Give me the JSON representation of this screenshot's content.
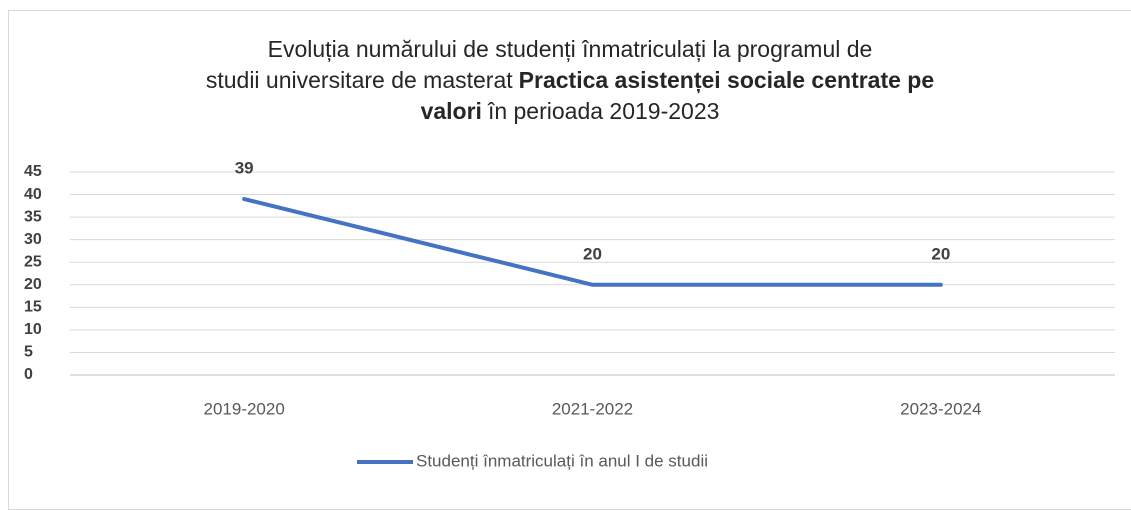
{
  "chart_data": {
    "type": "line",
    "title_lines": [
      [
        {
          "text": "Evoluția numărului de studenți înmatriculați la programul de",
          "bold": false
        }
      ],
      [
        {
          "text": "studii universitare de masterat",
          "bold": false
        },
        {
          "text": "Practica asistenței sociale centrate pe",
          "bold": true
        }
      ],
      [
        {
          "text": "valori",
          "bold": true
        },
        {
          "text": "în perioada 2019-2023",
          "bold": false
        }
      ]
    ],
    "categories": [
      "2019-2020",
      "2021-2022",
      "2023-2024"
    ],
    "series": [
      {
        "name": "Studenți înmatriculați în anul I de studii",
        "color": "#4472c4",
        "values": [
          39,
          20,
          20
        ]
      }
    ],
    "ylim": [
      0,
      45
    ],
    "yticks": [
      0,
      5,
      10,
      15,
      20,
      25,
      30,
      35,
      40,
      45
    ],
    "grid": true,
    "legend": "bottom"
  }
}
